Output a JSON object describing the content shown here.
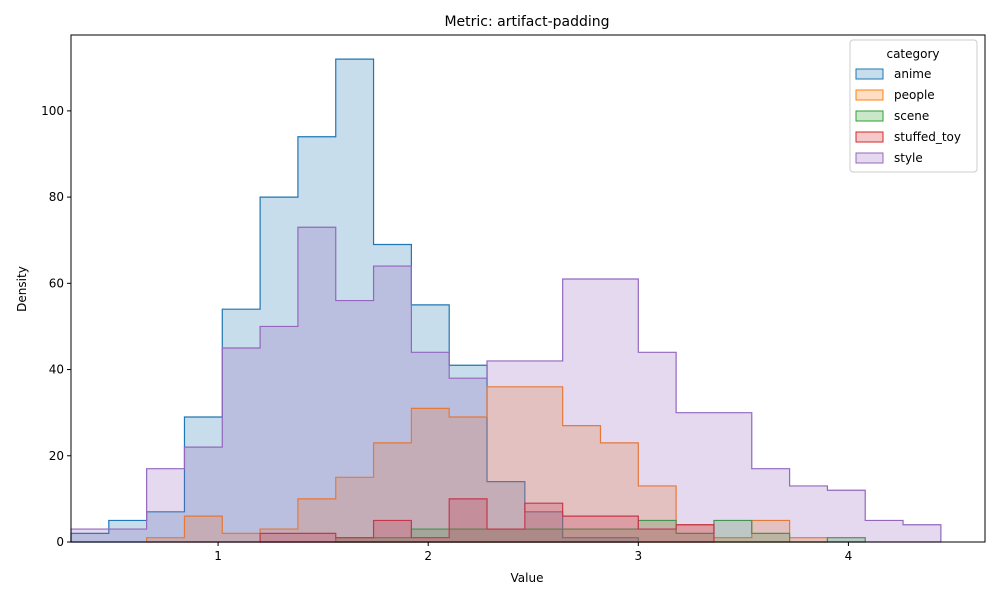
{
  "chart_data": {
    "type": "histogram",
    "title": "Metric: artifact-padding",
    "xlabel": "Value",
    "ylabel": "Density",
    "xlim": [
      0.3,
      4.65
    ],
    "ylim": [
      0,
      117.6
    ],
    "xticks": [
      1,
      2,
      3,
      4
    ],
    "yticks": [
      0,
      20,
      40,
      60,
      80,
      100
    ],
    "legend_title": "category",
    "legend_position": "top-right",
    "grid": false,
    "series": [
      {
        "name": "anime",
        "color": "#1f77b4",
        "edges": [
          0.3,
          0.48,
          0.66,
          0.84,
          1.02,
          1.2,
          1.38,
          1.56,
          1.74,
          1.92,
          2.1,
          2.28,
          2.46,
          2.64,
          2.82,
          3.0
        ],
        "values": [
          2,
          5,
          7,
          29,
          54,
          80,
          94,
          112,
          69,
          55,
          41,
          14,
          7,
          1,
          1
        ]
      },
      {
        "name": "people",
        "color": "#ff7f0e",
        "edges": [
          0.66,
          0.84,
          1.02,
          1.2,
          1.38,
          1.56,
          1.74,
          1.92,
          2.1,
          2.28,
          2.46,
          2.64,
          2.82,
          3.0,
          3.18,
          3.36,
          3.54,
          3.72,
          3.9
        ],
        "values": [
          1,
          6,
          2,
          3,
          10,
          15,
          23,
          31,
          29,
          36,
          36,
          27,
          23,
          13,
          4,
          1,
          5,
          1
        ]
      },
      {
        "name": "scene",
        "color": "#2ca02c",
        "edges": [
          1.56,
          1.74,
          1.92,
          2.1,
          2.28,
          2.46,
          2.64,
          2.82,
          3.0,
          3.18,
          3.36,
          3.54,
          3.72,
          3.9,
          4.08
        ],
        "values": [
          1,
          1,
          3,
          3,
          3,
          3,
          3,
          3,
          5,
          2,
          5,
          2,
          0,
          1
        ]
      },
      {
        "name": "stuffed_toy",
        "color": "#d62728",
        "edges": [
          1.2,
          1.38,
          1.56,
          1.74,
          1.92,
          2.1,
          2.28,
          2.46,
          2.64,
          2.82,
          3.0,
          3.18,
          3.36
        ],
        "values": [
          2,
          2,
          1,
          5,
          1,
          10,
          3,
          9,
          6,
          6,
          3,
          4
        ]
      },
      {
        "name": "style",
        "color": "#9467bd",
        "edges": [
          0.3,
          0.48,
          0.66,
          0.84,
          1.02,
          1.2,
          1.38,
          1.56,
          1.74,
          1.92,
          2.1,
          2.28,
          2.46,
          2.64,
          2.82,
          3.0,
          3.18,
          3.36,
          3.54,
          3.72,
          3.9,
          4.08,
          4.26,
          4.44
        ],
        "values": [
          3,
          3,
          17,
          22,
          45,
          50,
          73,
          56,
          64,
          44,
          38,
          42,
          42,
          61,
          61,
          44,
          30,
          30,
          17,
          13,
          12,
          5,
          4
        ]
      }
    ]
  }
}
